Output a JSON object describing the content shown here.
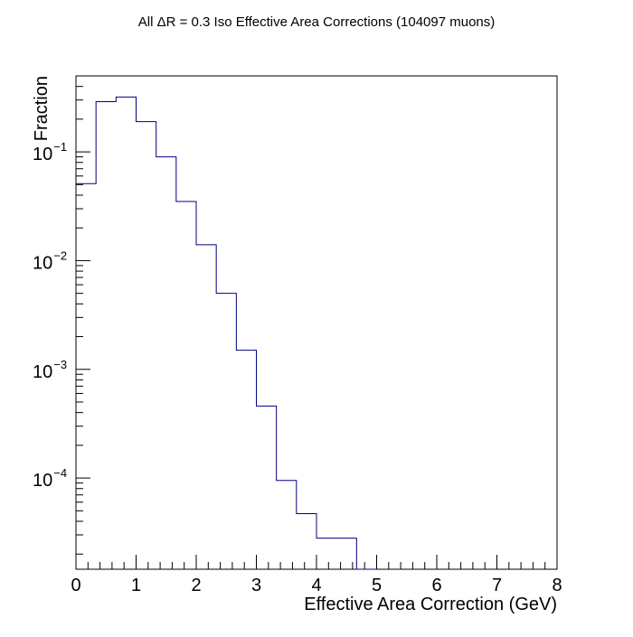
{
  "chart_data": {
    "type": "histogram",
    "title": "All ΔR = 0.3 Iso Effective Area Corrections (104097 muons)",
    "xlabel": "Effective Area Correction (GeV)",
    "ylabel": "Fraction",
    "xlim": [
      0,
      8
    ],
    "ylim": [
      1.45e-05,
      0.5
    ],
    "yscale": "log",
    "grid": false,
    "x_tick_labels": [
      "0",
      "1",
      "2",
      "3",
      "4",
      "5",
      "6",
      "7",
      "8"
    ],
    "y_tick_labels": [
      {
        "base": "10",
        "exp": "−1",
        "value": 0.1
      },
      {
        "base": "10",
        "exp": "−2",
        "value": 0.01
      },
      {
        "base": "10",
        "exp": "−3",
        "value": 0.001
      },
      {
        "base": "10",
        "exp": "−4",
        "value": 0.0001
      }
    ],
    "bin_edges": [
      0,
      0.3333,
      0.6667,
      1.0,
      1.3333,
      1.6667,
      2.0,
      2.3333,
      2.6667,
      3.0,
      3.3333,
      3.6667,
      4.0,
      4.3333,
      4.6667,
      5.0,
      5.3333,
      5.6667,
      6.0,
      6.3333,
      6.6667,
      7.0,
      7.3333,
      7.6667,
      8.0
    ],
    "values": [
      0.051,
      0.29,
      0.32,
      0.19,
      0.09,
      0.035,
      0.014,
      0.005,
      0.0015,
      0.00046,
      9.5e-05,
      4.7e-05,
      2.8e-05,
      2.8e-05,
      0,
      0,
      0,
      0,
      0,
      0,
      0,
      0,
      0,
      0
    ],
    "line_color": "#000080",
    "frame_color": "#000000"
  }
}
